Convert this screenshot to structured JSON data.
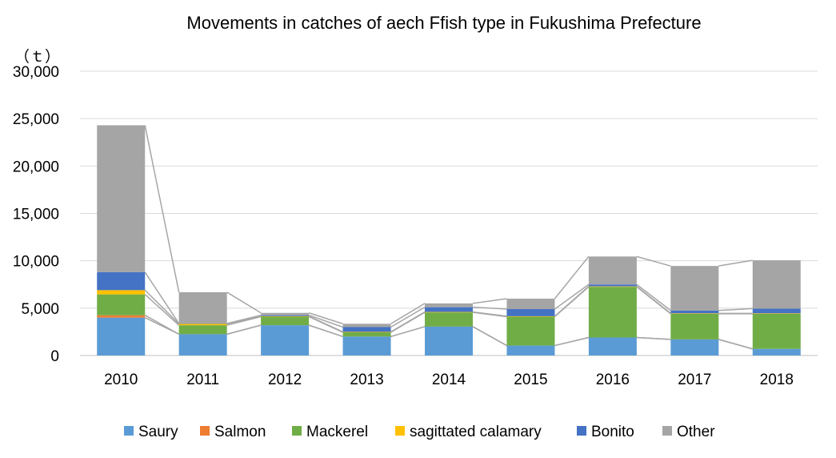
{
  "chart_data": {
    "type": "bar",
    "stacked": true,
    "title": "Movements in catches of aech Ffish type in Fukushima Prefecture",
    "ylabel": "",
    "unit": "（ｔ）",
    "categories": [
      "2010",
      "2011",
      "2012",
      "2013",
      "2014",
      "2015",
      "2016",
      "2017",
      "2018"
    ],
    "ylim": [
      0,
      30000
    ],
    "yticks": [
      0,
      5000,
      10000,
      15000,
      20000,
      25000,
      30000
    ],
    "ytick_labels": [
      "0",
      "5,000",
      "10,000",
      "15,000",
      "20,000",
      "25,000",
      "30,000"
    ],
    "grid": true,
    "series_lines": true,
    "legend": "bottom",
    "series": [
      {
        "name": "Saury",
        "color": "#5B9BD5",
        "values": [
          4000,
          2250,
          3200,
          2000,
          3050,
          1050,
          1900,
          1700,
          700
        ]
      },
      {
        "name": "Salmon",
        "color": "#ED7D31",
        "values": [
          250,
          0,
          0,
          0,
          0,
          0,
          0,
          0,
          0
        ]
      },
      {
        "name": "Mackerel",
        "color": "#70AD47",
        "values": [
          2200,
          950,
          900,
          450,
          1500,
          3050,
          5350,
          2700,
          3700
        ]
      },
      {
        "name": "sagittated calamary",
        "color": "#FFC000",
        "values": [
          450,
          150,
          50,
          50,
          50,
          50,
          50,
          50,
          50
        ]
      },
      {
        "name": "Bonito",
        "color": "#4472C4",
        "values": [
          1900,
          30,
          100,
          500,
          500,
          750,
          200,
          300,
          500
        ]
      },
      {
        "name": "Other",
        "color": "#A5A5A5",
        "values": [
          15500,
          3300,
          250,
          350,
          400,
          1100,
          2950,
          4700,
          5100
        ]
      }
    ]
  }
}
